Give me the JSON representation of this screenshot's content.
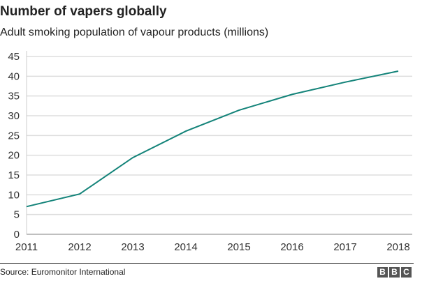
{
  "chart_data": {
    "type": "line",
    "title": "Number of vapers globally",
    "subtitle": "Adult smoking population of vapour products (millions)",
    "categories": [
      "2011",
      "2012",
      "2013",
      "2014",
      "2015",
      "2016",
      "2017",
      "2018"
    ],
    "series": [
      {
        "values": [
          7.0,
          10.2,
          19.4,
          26.1,
          31.4,
          35.4,
          38.5,
          41.3
        ],
        "color": "#138379"
      }
    ],
    "yticks": [
      0,
      5,
      10,
      15,
      20,
      25,
      30,
      35,
      40,
      45
    ],
    "ylim": [
      0,
      45
    ],
    "grid": true,
    "source": "Source: Euromonitor International",
    "logo": "BBC"
  }
}
